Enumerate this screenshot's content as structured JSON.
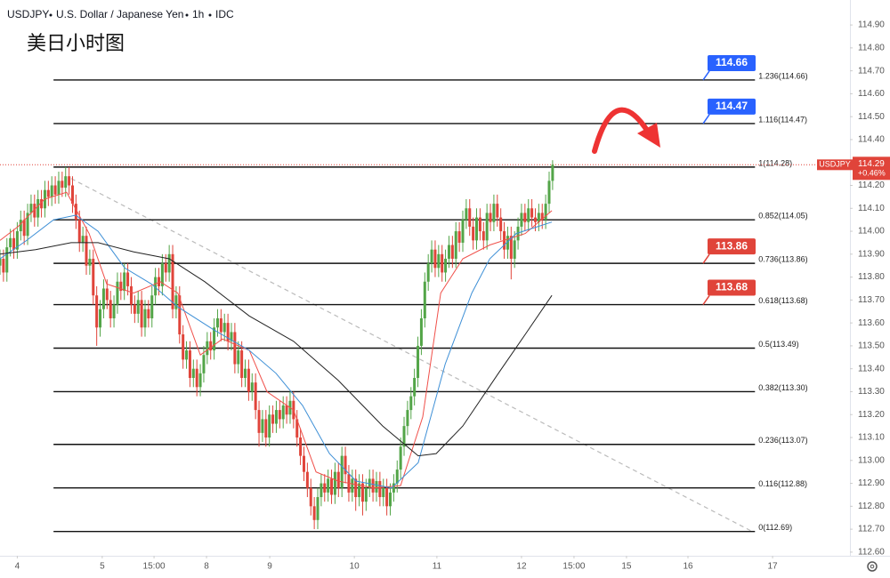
{
  "header": [
    "USDJPY",
    "U.S. Dollar / Japanese Yen",
    "1h",
    "IDC"
  ],
  "chart_data": {
    "type": "candlestick",
    "title": "美日小时图",
    "up_color": "#53a548",
    "down_color": "#e0443a",
    "xlim": [
      0,
      246.1
    ],
    "ylim": [
      112.584,
      115.009
    ],
    "grid": false,
    "xticks": [
      {
        "value": 5,
        "label": "4"
      },
      {
        "value": 29.6,
        "label": "5"
      },
      {
        "value": 44.6,
        "label": "15:00"
      },
      {
        "value": 59.8,
        "label": "8"
      },
      {
        "value": 78.1,
        "label": "9"
      },
      {
        "value": 102.6,
        "label": "10"
      },
      {
        "value": 126.5,
        "label": "11"
      },
      {
        "value": 151,
        "label": "12"
      },
      {
        "value": 166.2,
        "label": "15:00"
      },
      {
        "value": 181.4,
        "label": "15"
      },
      {
        "value": 199.2,
        "label": "16"
      },
      {
        "value": 223.7,
        "label": "17"
      }
    ],
    "yticks": [
      {
        "value": 112.6,
        "label": "112.60"
      },
      {
        "value": 112.7,
        "label": "112.70"
      },
      {
        "value": 112.8,
        "label": "112.80"
      },
      {
        "value": 112.9,
        "label": "112.90"
      },
      {
        "value": 113,
        "label": "113.00"
      },
      {
        "value": 113.1,
        "label": "113.10"
      },
      {
        "value": 113.2,
        "label": "113.20"
      },
      {
        "value": 113.3,
        "label": "113.30"
      },
      {
        "value": 113.4,
        "label": "113.40"
      },
      {
        "value": 113.5,
        "label": "113.50"
      },
      {
        "value": 113.6,
        "label": "113.60"
      },
      {
        "value": 113.7,
        "label": "113.70"
      },
      {
        "value": 113.8,
        "label": "113.80"
      },
      {
        "value": 113.9,
        "label": "113.90"
      },
      {
        "value": 114,
        "label": "114.00"
      },
      {
        "value": 114.1,
        "label": "114.10"
      },
      {
        "value": 114.2,
        "label": "114.20"
      },
      {
        "value": 114.3,
        "label": "114.30"
      },
      {
        "value": 114.4,
        "label": "114.40"
      },
      {
        "value": 114.5,
        "label": "114.50"
      },
      {
        "value": 114.6,
        "label": "114.60"
      },
      {
        "value": 114.7,
        "label": "114.70"
      },
      {
        "value": 114.8,
        "label": "114.80"
      },
      {
        "value": 114.9,
        "label": "114.90"
      }
    ],
    "candles": {
      "open": [
        113.85,
        113.88,
        113.82,
        113.93,
        113.97,
        113.92,
        114.0,
        114.05,
        113.98,
        114.08,
        114.12,
        114.06,
        114.14,
        114.1,
        114.18,
        114.15,
        114.2,
        114.16,
        114.22,
        114.19,
        114.24,
        114.2,
        114.12,
        114.05,
        113.95,
        113.98,
        113.85,
        113.88,
        113.72,
        113.58,
        113.66,
        113.75,
        113.7,
        113.62,
        113.68,
        113.78,
        113.74,
        113.82,
        113.76,
        113.68,
        113.64,
        113.7,
        113.58,
        113.66,
        113.62,
        113.72,
        113.8,
        113.76,
        113.86,
        113.82,
        113.9,
        113.66,
        113.72,
        113.55,
        113.44,
        113.48,
        113.36,
        113.4,
        113.32,
        113.38,
        113.46,
        113.52,
        113.48,
        113.58,
        113.62,
        113.56,
        113.6,
        113.52,
        113.56,
        113.42,
        113.48,
        113.36,
        113.4,
        113.3,
        113.34,
        113.22,
        113.12,
        113.18,
        113.1,
        113.2,
        113.16,
        113.22,
        113.18,
        113.24,
        113.2,
        113.26,
        113.18,
        113.1,
        113.02,
        112.95,
        112.88,
        112.8,
        112.74,
        112.84,
        112.9,
        112.86,
        112.92,
        112.85,
        112.95,
        112.88,
        113.02,
        112.94,
        112.86,
        112.92,
        112.84,
        112.9,
        112.82,
        112.88,
        112.92,
        112.86,
        112.91,
        112.84,
        112.88,
        112.8,
        112.86,
        112.9,
        112.96,
        113.06,
        113.15,
        113.22,
        113.28,
        113.36,
        113.5,
        113.62,
        113.78,
        113.86,
        113.92,
        113.84,
        113.9,
        113.82,
        113.88,
        113.94,
        113.88,
        114.0,
        113.95,
        114.05,
        114.1,
        114.02,
        113.96,
        114.06,
        114.0,
        113.96,
        114.08,
        114.04,
        114.12,
        114.06,
        114.0,
        113.92,
        113.98,
        113.88,
        113.96,
        114.02,
        114.08,
        114.04,
        114.1,
        114.06,
        114.04,
        114.08,
        114.05,
        114.12,
        114.22
      ],
      "high": [
        113.92,
        113.92,
        113.97,
        114.01,
        114.01,
        114.04,
        114.09,
        114.09,
        114.12,
        114.16,
        114.16,
        114.18,
        114.18,
        114.22,
        114.22,
        114.24,
        114.24,
        114.26,
        114.26,
        114.28,
        114.28,
        114.24,
        114.16,
        114.09,
        114.02,
        114.02,
        113.92,
        113.92,
        113.76,
        113.7,
        113.79,
        113.79,
        113.74,
        113.72,
        113.82,
        113.82,
        113.86,
        113.86,
        113.8,
        113.72,
        113.74,
        113.74,
        113.7,
        113.7,
        113.76,
        113.84,
        113.84,
        113.9,
        113.9,
        113.94,
        113.94,
        113.76,
        113.76,
        113.59,
        113.52,
        113.52,
        113.44,
        113.44,
        113.42,
        113.5,
        113.56,
        113.56,
        113.62,
        113.66,
        113.66,
        113.64,
        113.64,
        113.6,
        113.6,
        113.52,
        113.52,
        113.44,
        113.44,
        113.38,
        113.38,
        113.26,
        113.22,
        113.22,
        113.24,
        113.24,
        113.26,
        113.26,
        113.28,
        113.28,
        113.3,
        113.3,
        113.22,
        113.14,
        113.06,
        112.99,
        112.92,
        112.84,
        112.88,
        112.94,
        112.94,
        112.96,
        112.96,
        112.99,
        112.99,
        113.06,
        113.06,
        112.98,
        112.96,
        112.96,
        112.94,
        112.94,
        112.92,
        112.96,
        112.96,
        112.95,
        112.95,
        112.92,
        112.92,
        112.9,
        112.94,
        113.0,
        113.1,
        113.19,
        113.26,
        113.32,
        113.4,
        113.54,
        113.66,
        113.82,
        113.9,
        113.96,
        113.96,
        113.94,
        113.94,
        113.92,
        113.98,
        113.98,
        114.04,
        114.04,
        114.09,
        114.14,
        114.14,
        114.06,
        114.1,
        114.1,
        114.04,
        114.12,
        114.12,
        114.16,
        114.16,
        114.1,
        114.04,
        114.02,
        114.02,
        114.0,
        114.06,
        114.12,
        114.12,
        114.14,
        114.14,
        114.1,
        114.12,
        114.12,
        114.16,
        114.26,
        114.31
      ],
      "low": [
        113.81,
        113.78,
        113.78,
        113.89,
        113.88,
        113.88,
        113.96,
        113.94,
        113.94,
        114.04,
        114.02,
        114.02,
        114.06,
        114.06,
        114.11,
        114.11,
        114.12,
        114.12,
        114.15,
        114.15,
        114.16,
        114.08,
        114.01,
        113.91,
        113.91,
        113.81,
        113.81,
        113.68,
        113.5,
        113.54,
        113.62,
        113.66,
        113.58,
        113.58,
        113.64,
        113.7,
        113.7,
        113.72,
        113.64,
        113.6,
        113.6,
        113.54,
        113.54,
        113.58,
        113.58,
        113.68,
        113.72,
        113.72,
        113.78,
        113.78,
        113.62,
        113.62,
        113.51,
        113.4,
        113.4,
        113.32,
        113.32,
        113.28,
        113.28,
        113.34,
        113.42,
        113.44,
        113.44,
        113.54,
        113.52,
        113.52,
        113.48,
        113.48,
        113.38,
        113.38,
        113.32,
        113.32,
        113.26,
        113.26,
        113.18,
        113.06,
        113.08,
        113.06,
        113.06,
        113.12,
        113.12,
        113.14,
        113.14,
        113.16,
        113.16,
        113.14,
        113.06,
        112.98,
        112.91,
        112.84,
        112.76,
        112.7,
        112.7,
        112.8,
        112.82,
        112.82,
        112.81,
        112.81,
        112.84,
        112.84,
        112.9,
        112.82,
        112.82,
        112.78,
        112.8,
        112.76,
        112.78,
        112.84,
        112.82,
        112.82,
        112.8,
        112.8,
        112.76,
        112.76,
        112.82,
        112.86,
        112.92,
        113.02,
        113.11,
        113.18,
        113.24,
        113.32,
        113.46,
        113.58,
        113.74,
        113.82,
        113.8,
        113.8,
        113.78,
        113.78,
        113.84,
        113.84,
        113.84,
        113.91,
        113.91,
        114.01,
        113.98,
        113.92,
        113.92,
        113.96,
        113.92,
        113.92,
        114.0,
        114.0,
        114.02,
        113.96,
        113.88,
        113.88,
        113.79,
        113.84,
        113.92,
        113.98,
        114.0,
        114.0,
        114.02,
        114.0,
        114.0,
        114.01,
        114.01,
        114.08,
        114.18
      ],
      "close": [
        113.88,
        113.82,
        113.93,
        113.97,
        113.92,
        114.0,
        114.05,
        113.98,
        114.08,
        114.12,
        114.06,
        114.14,
        114.1,
        114.18,
        114.15,
        114.2,
        114.16,
        114.22,
        114.19,
        114.24,
        114.2,
        114.12,
        114.05,
        113.95,
        113.98,
        113.85,
        113.88,
        113.72,
        113.58,
        113.66,
        113.75,
        113.7,
        113.62,
        113.68,
        113.78,
        113.74,
        113.82,
        113.76,
        113.68,
        113.64,
        113.7,
        113.58,
        113.66,
        113.62,
        113.72,
        113.8,
        113.76,
        113.86,
        113.82,
        113.9,
        113.66,
        113.72,
        113.55,
        113.44,
        113.48,
        113.36,
        113.4,
        113.32,
        113.38,
        113.46,
        113.52,
        113.48,
        113.58,
        113.62,
        113.56,
        113.6,
        113.52,
        113.56,
        113.42,
        113.48,
        113.36,
        113.4,
        113.3,
        113.34,
        113.22,
        113.12,
        113.18,
        113.1,
        113.2,
        113.16,
        113.22,
        113.18,
        113.24,
        113.2,
        113.26,
        113.18,
        113.1,
        113.02,
        112.95,
        112.88,
        112.8,
        112.74,
        112.84,
        112.9,
        112.86,
        112.92,
        112.85,
        112.95,
        112.88,
        113.02,
        112.94,
        112.86,
        112.92,
        112.84,
        112.9,
        112.82,
        112.88,
        112.92,
        112.86,
        112.91,
        112.84,
        112.88,
        112.8,
        112.86,
        112.9,
        112.96,
        113.06,
        113.15,
        113.22,
        113.28,
        113.36,
        113.5,
        113.62,
        113.78,
        113.86,
        113.92,
        113.84,
        113.9,
        113.82,
        113.88,
        113.94,
        113.88,
        114.0,
        113.95,
        114.05,
        114.1,
        114.02,
        113.96,
        114.06,
        114.0,
        113.96,
        114.08,
        114.04,
        114.12,
        114.06,
        114.0,
        113.92,
        113.98,
        113.88,
        113.96,
        114.02,
        114.08,
        114.04,
        114.1,
        114.06,
        114.04,
        114.08,
        114.05,
        114.12,
        114.22,
        114.29
      ]
    },
    "series": [
      {
        "color": "#f0504a",
        "x": [
          0,
          5.2,
          12.9,
          19.3,
          25.8,
          30.9,
          38.7,
          46.4,
          51.5,
          58,
          64.4,
          72.2,
          77.3,
          85,
          91.5,
          97.9,
          108.2,
          116,
          122.4,
          127.6,
          134,
          141.8,
          152.1,
          159.8
        ],
        "values": [
          113.96,
          114.02,
          114.14,
          114.17,
          113.99,
          113.77,
          113.73,
          113.78,
          113.73,
          113.46,
          113.53,
          113.48,
          113.3,
          113.22,
          112.95,
          112.91,
          112.88,
          112.89,
          113.19,
          113.73,
          113.88,
          113.94,
          113.99,
          114.09
        ]
      },
      {
        "color": "#3d8fd6",
        "x": [
          0,
          7.7,
          15.5,
          21.9,
          28.4,
          36.1,
          43.8,
          51.5,
          61.9,
          72.2,
          79.9,
          87.6,
          95.4,
          103.1,
          113.4,
          121.1,
          128.9,
          136.6,
          141.8,
          149.5,
          159.8
        ],
        "values": [
          113.88,
          113.96,
          114.05,
          114.07,
          114.0,
          113.84,
          113.77,
          113.67,
          113.57,
          113.48,
          113.38,
          113.24,
          113.03,
          112.91,
          112.88,
          112.99,
          113.42,
          113.73,
          113.88,
          113.99,
          114.04
        ]
      },
      {
        "color": "#222222",
        "x": [
          0,
          10.3,
          20.6,
          28.4,
          38.7,
          49,
          59.3,
          72.2,
          85,
          97.9,
          110.8,
          121.1,
          126.3,
          134,
          144.3,
          152.1,
          159.8
        ],
        "values": [
          113.9,
          113.92,
          113.95,
          113.95,
          113.91,
          113.88,
          113.78,
          113.63,
          113.52,
          113.35,
          113.15,
          113.02,
          113.03,
          113.15,
          113.38,
          113.55,
          113.72
        ]
      }
    ],
    "fib_x": [
      15.5,
      218.6
    ],
    "fib_levels": [
      {
        "value": 114.66,
        "label": "1.236(114.66)"
      },
      {
        "value": 114.47,
        "label": "1.116(114.47)"
      },
      {
        "value": 114.28,
        "label": "1(114.28)"
      },
      {
        "value": 114.05,
        "label": "0.852(114.05)"
      },
      {
        "value": 113.86,
        "label": "0.736(113.86)"
      },
      {
        "value": 113.68,
        "label": "0.618(113.68)"
      },
      {
        "value": 113.49,
        "label": "0.5(113.49)"
      },
      {
        "value": 113.3,
        "label": "0.382(113.30)"
      },
      {
        "value": 113.07,
        "label": "0.236(113.07)"
      },
      {
        "value": 112.88,
        "label": "0.116(112.88)"
      },
      {
        "value": 112.69,
        "label": "0(112.69)"
      }
    ],
    "callouts": [
      {
        "value": 114.66,
        "color": "#2962ff"
      },
      {
        "value": 114.47,
        "color": "#2962ff"
      },
      {
        "value": 113.86,
        "color": "#e0443a"
      },
      {
        "value": 113.68,
        "color": "#e0443a"
      }
    ],
    "trendline": {
      "x": [
        20.6,
        217.8
      ],
      "values": [
        114.23,
        112.69
      ],
      "color": "#bbbbbb"
    },
    "last_price": 114.29,
    "symbol": "USDJPY",
    "change": "+0.46%"
  }
}
